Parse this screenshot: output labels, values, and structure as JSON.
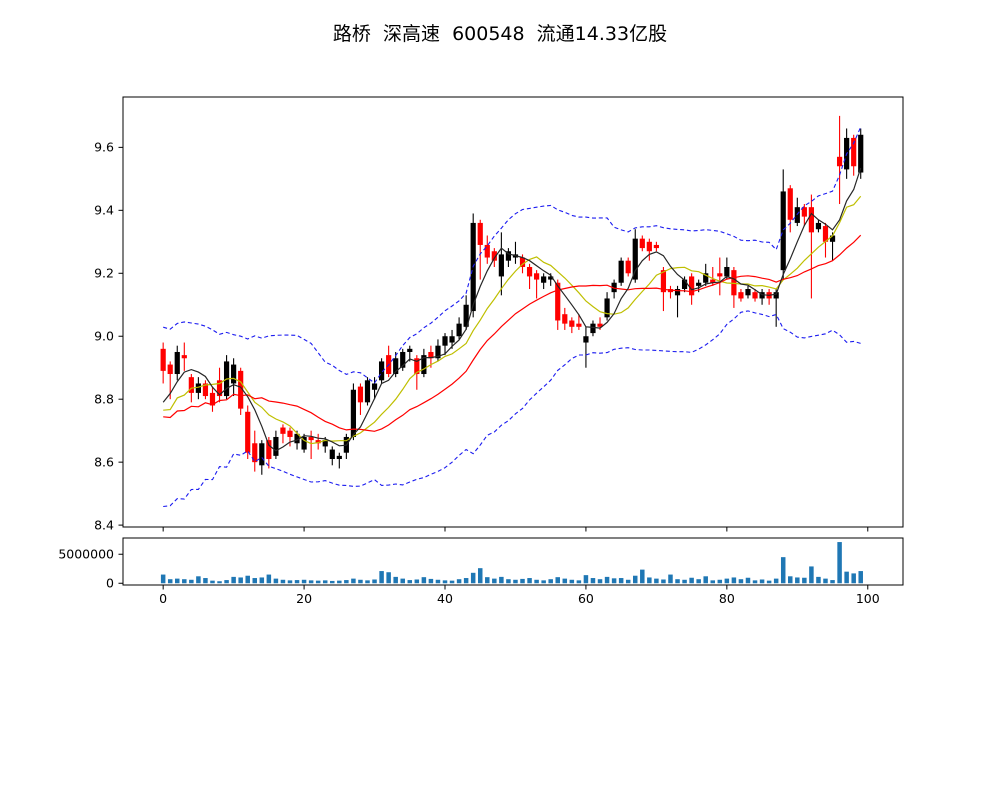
{
  "header": {
    "title": "路桥  深高速  600548  流通14.33亿股"
  },
  "chart_data": {
    "type": "candlestick+volume",
    "title": "路桥  深高速  600548  流通14.33亿股",
    "x_axis": {
      "range": [
        -5.7,
        105
      ],
      "ticks": [
        0,
        20,
        40,
        60,
        80,
        100
      ],
      "tick_labels": [
        "0",
        "20",
        "40",
        "60",
        "80",
        "100"
      ]
    },
    "price_axis": {
      "range": [
        8.394,
        9.76
      ],
      "ticks": [
        8.4,
        8.6,
        8.8,
        9.0,
        9.2,
        9.4,
        9.6
      ],
      "tick_labels": [
        "8.4",
        "8.6",
        "8.8",
        "9.0",
        "9.2",
        "9.4",
        "9.6"
      ]
    },
    "volume_axis": {
      "range": [
        -300000,
        7800000
      ],
      "ticks": [
        5000000,
        0
      ],
      "tick_labels": [
        "5000000",
        "0"
      ]
    },
    "colors": {
      "up_candle": "#000000",
      "down_candle": "#ff0000",
      "ma_short": "#262626",
      "ma_mid": "#bfbf00",
      "ma_long": "#ff0000",
      "bollinger_band": "#1c1cf0",
      "volume_bar": "#1f77b4",
      "frame": "#000000"
    },
    "overlays": {
      "ma_short_period": 5,
      "ma_mid_period": 10,
      "ma_long_period": 20,
      "band_period": 20,
      "band_sigma": 2,
      "warmup_closes": [
        8.92,
        8.54,
        8.9,
        8.55,
        8.88,
        8.56,
        8.9,
        8.54,
        8.88,
        8.56,
        8.86,
        8.58,
        8.84,
        8.6,
        8.82,
        8.74,
        8.76,
        8.78,
        8.78
      ]
    },
    "ohlc": {
      "open": [
        8.96,
        8.91,
        8.88,
        8.94,
        8.87,
        8.82,
        8.85,
        8.82,
        8.86,
        8.81,
        8.85,
        8.89,
        8.76,
        8.66,
        8.59,
        8.67,
        8.62,
        8.71,
        8.7,
        8.66,
        8.64,
        8.68,
        8.67,
        8.65,
        8.61,
        8.61,
        8.63,
        8.68,
        8.84,
        8.79,
        8.83,
        8.86,
        8.94,
        8.88,
        8.9,
        8.95,
        8.93,
        8.88,
        8.95,
        8.93,
        8.97,
        8.98,
        9.0,
        9.03,
        9.08,
        9.36,
        9.29,
        9.27,
        9.19,
        9.24,
        9.25,
        9.25,
        9.22,
        9.2,
        9.17,
        9.18,
        9.17,
        9.07,
        9.05,
        9.04,
        8.98,
        9.01,
        9.04,
        9.06,
        9.14,
        9.17,
        9.24,
        9.18,
        9.31,
        9.3,
        9.29,
        9.21,
        9.15,
        9.13,
        9.15,
        9.19,
        9.16,
        9.17,
        9.18,
        9.2,
        9.19,
        9.21,
        9.14,
        9.13,
        9.14,
        9.12,
        9.14,
        9.12,
        9.21,
        9.47,
        9.36,
        9.41,
        9.41,
        9.34,
        9.35,
        9.3,
        9.57,
        9.53,
        9.63,
        9.52
      ],
      "high": [
        8.98,
        8.92,
        8.97,
        8.98,
        8.88,
        8.87,
        8.86,
        8.84,
        8.9,
        8.94,
        8.93,
        8.9,
        8.78,
        8.7,
        8.67,
        8.68,
        8.7,
        8.72,
        8.71,
        8.7,
        8.69,
        8.7,
        8.69,
        8.68,
        8.65,
        8.63,
        8.69,
        8.85,
        8.85,
        8.87,
        8.87,
        8.93,
        8.97,
        8.95,
        8.96,
        8.97,
        8.94,
        8.96,
        8.97,
        8.99,
        9.01,
        9.02,
        9.06,
        9.13,
        9.39,
        9.37,
        9.32,
        9.28,
        9.33,
        9.28,
        9.3,
        9.26,
        9.23,
        9.21,
        9.2,
        9.2,
        9.18,
        9.09,
        9.06,
        9.07,
        9.03,
        9.05,
        9.06,
        9.14,
        9.18,
        9.25,
        9.25,
        9.34,
        9.32,
        9.31,
        9.3,
        9.22,
        9.16,
        9.16,
        9.19,
        9.2,
        9.18,
        9.23,
        9.22,
        9.25,
        9.25,
        9.22,
        9.15,
        9.16,
        9.15,
        9.15,
        9.15,
        9.15,
        9.53,
        9.48,
        9.44,
        9.42,
        9.45,
        9.37,
        9.36,
        9.33,
        9.7,
        9.66,
        9.64,
        9.66
      ],
      "low": [
        8.85,
        8.8,
        8.86,
        8.89,
        8.79,
        8.8,
        8.8,
        8.76,
        8.79,
        8.8,
        8.81,
        8.75,
        8.61,
        8.57,
        8.56,
        8.58,
        8.61,
        8.66,
        8.65,
        8.64,
        8.63,
        8.61,
        8.64,
        8.63,
        8.59,
        8.58,
        8.61,
        8.67,
        8.75,
        8.78,
        8.8,
        8.85,
        8.87,
        8.87,
        8.89,
        8.92,
        8.83,
        8.87,
        8.9,
        8.92,
        8.94,
        8.96,
        8.99,
        9.02,
        9.06,
        9.18,
        9.23,
        9.22,
        9.13,
        9.22,
        9.23,
        9.2,
        9.15,
        9.12,
        9.15,
        9.16,
        9.02,
        9.02,
        9.01,
        9.02,
        8.9,
        9.0,
        9.02,
        9.05,
        9.12,
        9.16,
        9.19,
        9.17,
        9.27,
        9.24,
        9.27,
        9.08,
        9.12,
        9.06,
        9.14,
        9.1,
        9.14,
        9.16,
        9.16,
        9.13,
        9.18,
        9.09,
        9.11,
        9.12,
        9.11,
        9.1,
        9.1,
        9.03,
        9.18,
        9.33,
        9.35,
        9.35,
        9.12,
        9.33,
        9.25,
        9.24,
        9.42,
        9.5,
        9.51,
        9.5
      ],
      "close": [
        8.89,
        8.88,
        8.95,
        8.93,
        8.82,
        8.85,
        8.81,
        8.78,
        8.81,
        8.92,
        8.91,
        8.77,
        8.63,
        8.6,
        8.66,
        8.61,
        8.68,
        8.69,
        8.68,
        8.69,
        8.68,
        8.67,
        8.66,
        8.67,
        8.64,
        8.62,
        8.68,
        8.83,
        8.79,
        8.86,
        8.85,
        8.92,
        8.88,
        8.93,
        8.95,
        8.96,
        8.88,
        8.94,
        8.93,
        8.97,
        9.0,
        9.0,
        9.04,
        9.1,
        9.36,
        9.29,
        9.25,
        9.24,
        9.26,
        9.27,
        9.26,
        9.22,
        9.19,
        9.18,
        9.19,
        9.19,
        9.05,
        9.04,
        9.03,
        9.03,
        9.0,
        9.04,
        9.03,
        9.12,
        9.17,
        9.24,
        9.2,
        9.31,
        9.28,
        9.27,
        9.28,
        9.14,
        9.14,
        9.15,
        9.18,
        9.13,
        9.17,
        9.2,
        9.17,
        9.19,
        9.22,
        9.13,
        9.12,
        9.15,
        9.12,
        9.14,
        9.12,
        9.14,
        9.46,
        9.37,
        9.41,
        9.38,
        9.33,
        9.36,
        9.3,
        9.32,
        9.54,
        9.63,
        9.54,
        9.64
      ]
    },
    "volume": [
      1500000,
      700000,
      800000,
      700000,
      600000,
      1200000,
      900000,
      450000,
      350000,
      550000,
      1100000,
      1000000,
      1300000,
      900000,
      1000000,
      1500000,
      800000,
      600000,
      500000,
      550000,
      600000,
      500000,
      450000,
      500000,
      400000,
      450000,
      550000,
      800000,
      600000,
      500000,
      650000,
      2100000,
      1900000,
      1100000,
      800000,
      550000,
      650000,
      1050000,
      750000,
      600000,
      500000,
      450000,
      700000,
      900000,
      1800000,
      2600000,
      1050000,
      800000,
      1100000,
      700000,
      600000,
      750000,
      900000,
      600000,
      500000,
      700000,
      1050000,
      800000,
      600000,
      500000,
      1400000,
      900000,
      700000,
      1100000,
      850000,
      900000,
      600000,
      1300000,
      2350000,
      1000000,
      800000,
      650000,
      1500000,
      700000,
      600000,
      950000,
      700000,
      1200000,
      500000,
      600000,
      800000,
      1000000,
      700000,
      950000,
      500000,
      650000,
      450000,
      800000,
      4500000,
      1200000,
      1000000,
      950000,
      2900000,
      1100000,
      800000,
      550000,
      7100000,
      2000000,
      1700000,
      2100000
    ]
  }
}
